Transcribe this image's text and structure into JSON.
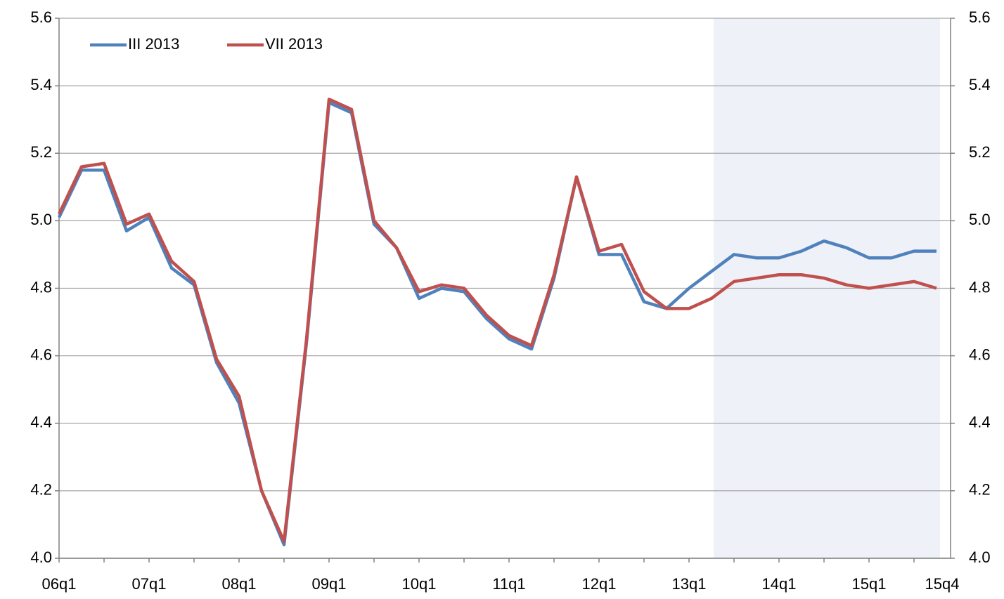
{
  "chart_data": {
    "type": "line",
    "categories": [
      "06q1",
      null,
      null,
      null,
      "07q1",
      null,
      null,
      null,
      "08q1",
      null,
      null,
      null,
      "09q1",
      null,
      null,
      null,
      "10q1",
      null,
      null,
      null,
      "11q1",
      null,
      null,
      null,
      "12q1",
      null,
      null,
      null,
      "13q1",
      null,
      null,
      null,
      "14q1",
      null,
      null,
      null,
      "15q1",
      null,
      null,
      "15q4"
    ],
    "series": [
      {
        "name": "III 2013",
        "color": "#4f81bd",
        "values": [
          5.01,
          5.15,
          5.15,
          4.97,
          5.01,
          4.86,
          4.81,
          4.58,
          4.46,
          4.2,
          4.04,
          4.64,
          5.35,
          5.32,
          4.99,
          4.92,
          4.77,
          4.8,
          4.79,
          4.71,
          4.65,
          4.62,
          4.83,
          5.13,
          4.9,
          4.9,
          4.76,
          4.74,
          4.8,
          4.85,
          4.9,
          4.89,
          4.89,
          4.91,
          4.94,
          4.92,
          4.89,
          4.89,
          4.91,
          4.91
        ]
      },
      {
        "name": "VII 2013",
        "color": "#c0504d",
        "values": [
          5.02,
          5.16,
          5.17,
          4.99,
          5.02,
          4.88,
          4.82,
          4.59,
          4.48,
          4.2,
          4.05,
          4.65,
          5.36,
          5.33,
          5.0,
          4.92,
          4.79,
          4.81,
          4.8,
          4.72,
          4.66,
          4.63,
          4.84,
          5.13,
          4.91,
          4.93,
          4.79,
          4.74,
          4.74,
          4.77,
          4.82,
          4.83,
          4.84,
          4.84,
          4.83,
          4.81,
          4.8,
          4.81,
          4.82,
          4.8
        ]
      }
    ],
    "ylim": [
      4.0,
      5.6
    ],
    "yticks": [
      {
        "value": 4.0,
        "label": "4.0"
      },
      4.2,
      4.4,
      4.6,
      4.8,
      {
        "value": 5.0,
        "label": "5.0"
      },
      5.2,
      5.4,
      5.6
    ],
    "y2lim": [
      4.0,
      5.6
    ],
    "y2ticks": [
      {
        "value": 4.0,
        "label": "4.0"
      },
      4.2,
      4.4,
      4.6,
      4.8,
      {
        "value": 5.0,
        "label": "5.0"
      },
      5.2,
      5.4,
      5.6
    ],
    "grid": true,
    "legend": "top-left"
  }
}
